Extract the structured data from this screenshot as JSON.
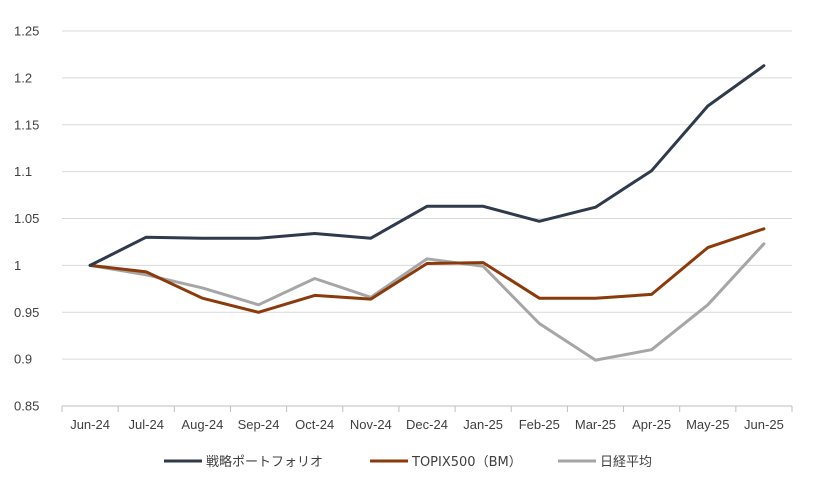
{
  "chart_data": {
    "type": "line",
    "categories": [
      "Jun-24",
      "Jul-24",
      "Aug-24",
      "Sep-24",
      "Oct-24",
      "Nov-24",
      "Dec-24",
      "Jan-25",
      "Feb-25",
      "Mar-25",
      "Apr-25",
      "May-25",
      "Jun-25"
    ],
    "series": [
      {
        "name": "戦略ポートフォリオ",
        "color": "#2f3a4d",
        "values": [
          1.0,
          1.03,
          1.029,
          1.029,
          1.034,
          1.029,
          1.063,
          1.063,
          1.047,
          1.062,
          1.101,
          1.17,
          1.213
        ]
      },
      {
        "name": "TOPIX500（BM）",
        "color": "#8b3a0b",
        "values": [
          1.0,
          0.993,
          0.965,
          0.95,
          0.968,
          0.964,
          1.002,
          1.003,
          0.965,
          0.965,
          0.969,
          1.019,
          1.039
        ]
      },
      {
        "name": "日経平均",
        "color": "#a6a6a6",
        "values": [
          1.0,
          0.99,
          0.976,
          0.958,
          0.986,
          0.966,
          1.007,
          0.999,
          0.938,
          0.899,
          0.91,
          0.958,
          1.023
        ]
      }
    ],
    "yticks": [
      "0.85",
      "0.9",
      "0.95",
      "1",
      "1.05",
      "1.1",
      "1.15",
      "1.2",
      "1.25"
    ],
    "ylim": [
      0.85,
      1.25
    ],
    "grid": true,
    "legend_position": "bottom",
    "title": "",
    "xlabel": "",
    "ylabel": ""
  }
}
